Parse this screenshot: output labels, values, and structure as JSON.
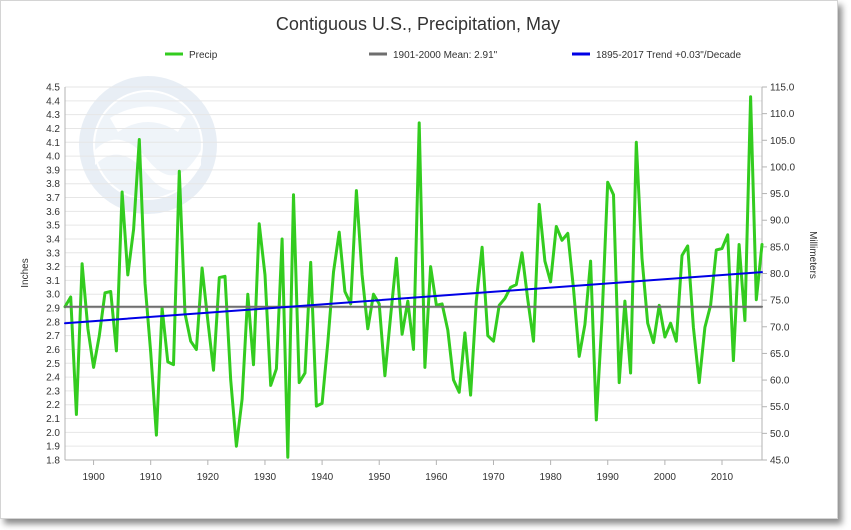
{
  "chart_data": {
    "type": "line",
    "title": "Contiguous U.S., Precipitation, May",
    "ylabel": "Inches",
    "y2label": "Millimeters",
    "xlim": [
      1895,
      2017
    ],
    "ylim": [
      1.8,
      4.5
    ],
    "y2lim": [
      45.0,
      115.0
    ],
    "x_ticks": [
      "1900",
      "1910",
      "1920",
      "1930",
      "1940",
      "1950",
      "1960",
      "1970",
      "1980",
      "1990",
      "2000",
      "2010"
    ],
    "y_ticks": [
      "1.8",
      "1.9",
      "2.0",
      "2.1",
      "2.2",
      "2.3",
      "2.4",
      "2.5",
      "2.6",
      "2.7",
      "2.8",
      "2.9",
      "3.0",
      "3.1",
      "3.2",
      "3.3",
      "3.4",
      "3.5",
      "3.6",
      "3.7",
      "3.8",
      "3.9",
      "4.0",
      "4.1",
      "4.2",
      "4.3",
      "4.4",
      "4.5"
    ],
    "y2_ticks": [
      "45.0",
      "50.0",
      "55.0",
      "60.0",
      "65.0",
      "70.0",
      "75.0",
      "80.0",
      "85.0",
      "90.0",
      "95.0",
      "100.0",
      "105.0",
      "110.0",
      "115.0"
    ],
    "grid": "horizontal",
    "legend_position": "top",
    "series": [
      {
        "name": "Precip",
        "color": "#33cc1f",
        "x": [
          1895,
          1896,
          1897,
          1898,
          1899,
          1900,
          1901,
          1902,
          1903,
          1904,
          1905,
          1906,
          1907,
          1908,
          1909,
          1910,
          1911,
          1912,
          1913,
          1914,
          1915,
          1916,
          1917,
          1918,
          1919,
          1920,
          1921,
          1922,
          1923,
          1924,
          1925,
          1926,
          1927,
          1928,
          1929,
          1930,
          1931,
          1932,
          1933,
          1934,
          1935,
          1936,
          1937,
          1938,
          1939,
          1940,
          1941,
          1942,
          1943,
          1944,
          1945,
          1946,
          1947,
          1948,
          1949,
          1950,
          1951,
          1952,
          1953,
          1954,
          1955,
          1956,
          1957,
          1958,
          1959,
          1960,
          1961,
          1962,
          1963,
          1964,
          1965,
          1966,
          1967,
          1968,
          1969,
          1970,
          1971,
          1972,
          1973,
          1974,
          1975,
          1976,
          1977,
          1978,
          1979,
          1980,
          1981,
          1982,
          1983,
          1984,
          1985,
          1986,
          1987,
          1988,
          1989,
          1990,
          1991,
          1992,
          1993,
          1994,
          1995,
          1996,
          1997,
          1998,
          1999,
          2000,
          2001,
          2002,
          2003,
          2004,
          2005,
          2006,
          2007,
          2008,
          2009,
          2010,
          2011,
          2012,
          2013,
          2014,
          2015,
          2016,
          2017
        ],
        "values": [
          2.91,
          2.98,
          2.13,
          3.22,
          2.75,
          2.47,
          2.7,
          3.01,
          3.02,
          2.59,
          3.74,
          3.14,
          3.47,
          4.12,
          3.08,
          2.58,
          1.98,
          2.9,
          2.51,
          2.49,
          3.89,
          2.86,
          2.66,
          2.6,
          3.19,
          2.81,
          2.45,
          3.12,
          3.13,
          2.38,
          1.9,
          2.24,
          3.0,
          2.49,
          3.51,
          3.14,
          2.34,
          2.46,
          3.4,
          1.82,
          3.72,
          2.36,
          2.43,
          3.23,
          2.19,
          2.21,
          2.65,
          3.16,
          3.45,
          3.02,
          2.93,
          3.75,
          3.14,
          2.75,
          3.0,
          2.93,
          2.41,
          2.84,
          3.26,
          2.71,
          2.95,
          2.6,
          4.24,
          2.47,
          3.2,
          2.92,
          2.93,
          2.74,
          2.38,
          2.29,
          2.72,
          2.27,
          2.95,
          3.34,
          2.7,
          2.66,
          2.92,
          2.97,
          3.05,
          3.07,
          3.3,
          2.96,
          2.66,
          3.65,
          3.24,
          3.09,
          3.49,
          3.39,
          3.44,
          3.04,
          2.55,
          2.78,
          3.24,
          2.09,
          2.82,
          3.81,
          3.72,
          2.36,
          2.95,
          2.43,
          4.1,
          3.26,
          2.79,
          2.65,
          2.92,
          2.69,
          2.79,
          2.66,
          3.28,
          3.35,
          2.76,
          2.36,
          2.76,
          2.92,
          3.32,
          3.33,
          3.43,
          2.52,
          3.36,
          2.81,
          4.43,
          2.96,
          3.36
        ]
      },
      {
        "name": "1901-2000 Mean: 2.91\"",
        "color": "#6e6e6e",
        "x": [
          1895,
          2017
        ],
        "values": [
          2.91,
          2.91
        ]
      },
      {
        "name": "1895-2017 Trend +0.03\"/Decade",
        "color": "#0000e6",
        "x": [
          1895,
          2017
        ],
        "values": [
          2.79,
          3.16
        ]
      }
    ]
  }
}
